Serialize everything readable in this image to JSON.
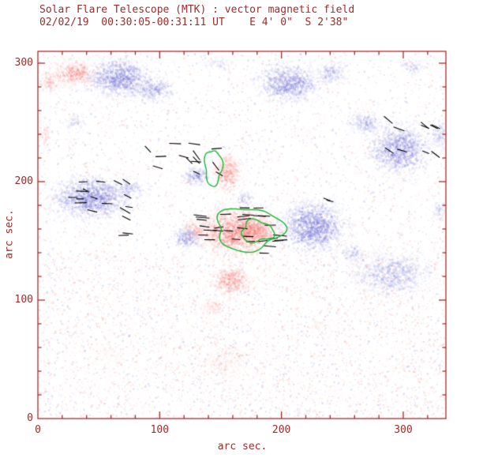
{
  "title": "Solar Flare Telescope (MTK) : vector magnetic field",
  "subtitle": "02/02/19  00:30:05-00:31:11 UT    E 4' 0\"  S 2'38\"",
  "axes": {
    "xlabel": "arc sec.",
    "ylabel": "arc sec.",
    "xticks": [
      0,
      100,
      200,
      300
    ],
    "yticks": [
      0,
      100,
      200,
      300
    ],
    "xrange": [
      0,
      335
    ],
    "yrange": [
      0,
      310
    ],
    "minor_tick_step": 20,
    "major_tick_step": 100
  },
  "colors": {
    "axis": "#a52a2a",
    "text": "#a52a2a",
    "positive": "#f2837e",
    "negative": "#8080d8",
    "contour": "#17b837",
    "vector": "#000000",
    "background": "#ffffff"
  },
  "chart_data": {
    "type": "heatmap",
    "title": "Solar Flare Telescope (MTK) : vector magnetic field",
    "subtitle": "02/02/19  00:30:05-00:31:11 UT    E 4' 0\"  S 2'38\"",
    "xlabel": "arc sec.",
    "ylabel": "arc sec.",
    "xlim": [
      0,
      335
    ],
    "ylim": [
      0,
      310
    ],
    "blobs": [
      {
        "x": 66,
        "y": 288,
        "rx": 30,
        "ry": 18,
        "p": "neg",
        "a": 0.9,
        "d": 0.9
      },
      {
        "x": 95,
        "y": 278,
        "rx": 18,
        "ry": 12,
        "p": "neg",
        "a": 0.7,
        "d": 0.7
      },
      {
        "x": 30,
        "y": 250,
        "rx": 12,
        "ry": 10,
        "p": "neg",
        "a": 0.35,
        "d": 0.5
      },
      {
        "x": 205,
        "y": 284,
        "rx": 30,
        "ry": 18,
        "p": "neg",
        "a": 0.85,
        "d": 0.85
      },
      {
        "x": 240,
        "y": 293,
        "rx": 16,
        "ry": 10,
        "p": "neg",
        "a": 0.6,
        "d": 0.6
      },
      {
        "x": 148,
        "y": 300,
        "rx": 12,
        "ry": 7,
        "p": "neg",
        "a": 0.4,
        "d": 0.5
      },
      {
        "x": 306,
        "y": 298,
        "rx": 14,
        "ry": 8,
        "p": "neg",
        "a": 0.45,
        "d": 0.5
      },
      {
        "x": 296,
        "y": 228,
        "rx": 27,
        "ry": 24,
        "p": "neg",
        "a": 0.85,
        "d": 0.85
      },
      {
        "x": 268,
        "y": 250,
        "rx": 16,
        "ry": 12,
        "p": "neg",
        "a": 0.6,
        "d": 0.6
      },
      {
        "x": 329,
        "y": 240,
        "rx": 10,
        "ry": 16,
        "p": "neg",
        "a": 0.5,
        "d": 0.5
      },
      {
        "x": 43,
        "y": 187,
        "rx": 36,
        "ry": 20,
        "p": "neg",
        "a": 0.9,
        "d": 0.9
      },
      {
        "x": 75,
        "y": 195,
        "rx": 14,
        "ry": 10,
        "p": "neg",
        "a": 0.6,
        "d": 0.6
      },
      {
        "x": 129,
        "y": 205,
        "rx": 12,
        "ry": 10,
        "p": "neg",
        "a": 0.75,
        "d": 0.8
      },
      {
        "x": 170,
        "y": 186,
        "rx": 11,
        "ry": 8,
        "p": "neg",
        "a": 0.5,
        "d": 0.6
      },
      {
        "x": 225,
        "y": 163,
        "rx": 30,
        "ry": 24,
        "p": "neg",
        "a": 0.95,
        "d": 0.95
      },
      {
        "x": 122,
        "y": 153,
        "rx": 13,
        "ry": 11,
        "p": "neg",
        "a": 0.8,
        "d": 0.8
      },
      {
        "x": 290,
        "y": 123,
        "rx": 36,
        "ry": 23,
        "p": "neg",
        "a": 0.55,
        "d": 0.6
      },
      {
        "x": 257,
        "y": 140,
        "rx": 14,
        "ry": 10,
        "p": "neg",
        "a": 0.5,
        "d": 0.5
      },
      {
        "x": 329,
        "y": 177,
        "rx": 8,
        "ry": 12,
        "p": "neg",
        "a": 0.45,
        "d": 0.5
      },
      {
        "x": 29,
        "y": 292,
        "rx": 20,
        "ry": 13,
        "p": "pos",
        "a": 0.8,
        "d": 0.8
      },
      {
        "x": 8,
        "y": 285,
        "rx": 10,
        "ry": 12,
        "p": "pos",
        "a": 0.5,
        "d": 0.6
      },
      {
        "x": 155,
        "y": 208,
        "rx": 13,
        "ry": 17,
        "p": "pos",
        "a": 0.85,
        "d": 0.85
      },
      {
        "x": 163,
        "y": 158,
        "rx": 36,
        "ry": 22,
        "p": "pos",
        "a": 0.95,
        "d": 0.95
      },
      {
        "x": 178,
        "y": 160,
        "rx": 18,
        "ry": 12,
        "p": "pos",
        "a": 0.9,
        "d": 0.9
      },
      {
        "x": 128,
        "y": 160,
        "rx": 14,
        "ry": 10,
        "p": "pos",
        "a": 0.6,
        "d": 0.6
      },
      {
        "x": 158,
        "y": 117,
        "rx": 18,
        "ry": 14,
        "p": "pos",
        "a": 0.8,
        "d": 0.8
      },
      {
        "x": 143,
        "y": 95,
        "rx": 12,
        "ry": 9,
        "p": "pos",
        "a": 0.4,
        "d": 0.5
      },
      {
        "x": 154,
        "y": 50,
        "rx": 27,
        "ry": 17,
        "p": "pos",
        "a": 0.22,
        "d": 0.45
      },
      {
        "x": 228,
        "y": 80,
        "rx": 13,
        "ry": 9,
        "p": "pos",
        "a": 0.18,
        "d": 0.4
      },
      {
        "x": 5,
        "y": 240,
        "rx": 8,
        "ry": 14,
        "p": "pos",
        "a": 0.3,
        "d": 0.5
      },
      {
        "x": 60,
        "y": 55,
        "rx": 20,
        "ry": 14,
        "p": "pos",
        "a": 0.12,
        "d": 0.35
      },
      {
        "x": 300,
        "y": 45,
        "rx": 22,
        "ry": 14,
        "p": "pos",
        "a": 0.1,
        "d": 0.3
      }
    ],
    "contours": [
      {
        "x": 173,
        "y": 160,
        "rx": 27,
        "ry": 18,
        "w": 0.12,
        "ph": 1.0
      },
      {
        "x": 180,
        "y": 158,
        "rx": 13,
        "ry": 9,
        "w": 0.15,
        "ph": 2.2
      },
      {
        "x": 144,
        "y": 212,
        "rx": 7,
        "ry": 15,
        "w": 0.12,
        "ph": 0.5
      }
    ],
    "vector_clusters": [
      {
        "x": 51,
        "y": 185,
        "w": 52,
        "h": 32,
        "n": 16,
        "angle": -20,
        "jitter": 50,
        "len": 8
      },
      {
        "x": 120,
        "y": 218,
        "w": 60,
        "h": 30,
        "n": 14,
        "angle": -25,
        "jitter": 60,
        "len": 8
      },
      {
        "x": 168,
        "y": 158,
        "w": 70,
        "h": 40,
        "n": 30,
        "angle": 0,
        "jitter": 18,
        "len": 9
      },
      {
        "x": 307,
        "y": 237,
        "w": 42,
        "h": 34,
        "n": 10,
        "angle": -30,
        "jitter": 30,
        "len": 8
      },
      {
        "x": 71,
        "y": 156,
        "w": 8,
        "h": 6,
        "n": 2,
        "angle": -10,
        "jitter": 30,
        "len": 7
      },
      {
        "x": 237,
        "y": 184,
        "w": 14,
        "h": 10,
        "n": 2,
        "angle": -20,
        "jitter": 40,
        "len": 7
      }
    ],
    "noise": [
      {
        "count": 6000,
        "pos_fraction": 0.5,
        "region": [
          0,
          0,
          335,
          310
        ]
      },
      {
        "count": 2600,
        "pos_fraction": 0.78,
        "region": [
          0,
          0,
          335,
          140
        ]
      }
    ]
  }
}
